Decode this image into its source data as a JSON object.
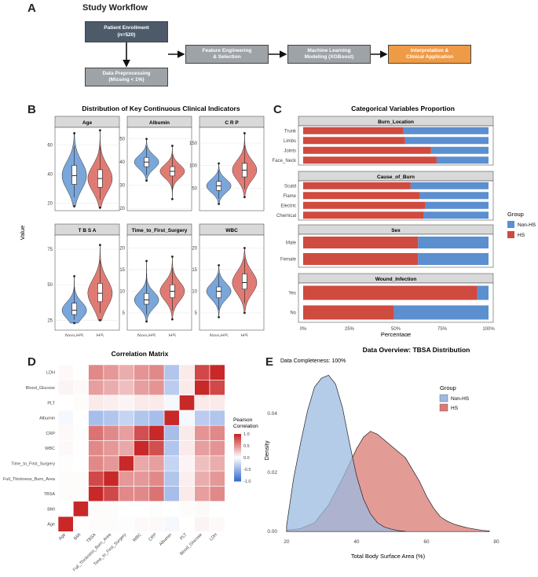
{
  "panels": {
    "A": "A",
    "B": "B",
    "C": "C",
    "D": "D",
    "E": "E"
  },
  "workflow": {
    "title": "Study Workflow",
    "enroll_1": "Patient Enrollment",
    "enroll_2": "(n=520)",
    "prep_1": "Data Preprocessing",
    "prep_2": "(Missing < 1%)",
    "feat_1": "Feature Engineering",
    "feat_2": "& Selection",
    "ml_1": "Machine Learning",
    "ml_2": "Modeling (XGBoost)",
    "interp_1": "Interpretation &",
    "interp_2": "Clinical Application",
    "colors": {
      "dark": "#4d5a6a",
      "grey": "#9ea3a8",
      "orange": "#ef9a45"
    }
  },
  "chart_data": [
    {
      "id": "B",
      "type": "violin",
      "title": "Distribution of Key Continuous Clinical Indicators",
      "ylabel": "Value",
      "groups": [
        "Non-HS",
        "HS"
      ],
      "colors": {
        "Non-HS": "#7aa6da",
        "HS": "#e07b74"
      },
      "facets": [
        {
          "label": "Age",
          "ticks": [
            20,
            40,
            60
          ],
          "ylim": [
            15,
            72
          ],
          "series": [
            {
              "group": "Non-HS",
              "median": 39,
              "q1": 33,
              "q3": 46,
              "min": 18,
              "max": 68
            },
            {
              "group": "HS",
              "median": 37,
              "q1": 31,
              "q3": 43,
              "min": 17,
              "max": 70
            }
          ]
        },
        {
          "label": "Albumin",
          "ticks": [
            20,
            30,
            40,
            50
          ],
          "ylim": [
            19,
            55
          ],
          "series": [
            {
              "group": "Non-HS",
              "median": 40,
              "q1": 38,
              "q3": 42,
              "min": 32,
              "max": 50
            },
            {
              "group": "HS",
              "median": 36,
              "q1": 34,
              "q3": 38,
              "min": 24,
              "max": 47
            }
          ]
        },
        {
          "label": "C R P",
          "ticks": [
            50,
            100,
            150
          ],
          "ylim": [
            0,
            185
          ],
          "series": [
            {
              "group": "Non-HS",
              "median": 55,
              "q1": 45,
              "q3": 65,
              "min": 15,
              "max": 105
            },
            {
              "group": "HS",
              "median": 90,
              "q1": 75,
              "q3": 105,
              "min": 30,
              "max": 172
            }
          ]
        },
        {
          "label": "T B S A",
          "ticks": [
            25,
            50,
            75
          ],
          "ylim": [
            18,
            85
          ],
          "series": [
            {
              "group": "Non-HS",
              "median": 32,
              "q1": 29,
              "q3": 37,
              "min": 23,
              "max": 56
            },
            {
              "group": "HS",
              "median": 44,
              "q1": 38,
              "q3": 51,
              "min": 25,
              "max": 78
            }
          ]
        },
        {
          "label": "Time_to_First_Surgery",
          "ticks": [
            5,
            10,
            15,
            20
          ],
          "ylim": [
            1,
            23
          ],
          "series": [
            {
              "group": "Non-HS",
              "median": 8,
              "q1": 7,
              "q3": 9.5,
              "min": 3,
              "max": 17
            },
            {
              "group": "HS",
              "median": 10,
              "q1": 8.5,
              "q3": 11.5,
              "min": 3.5,
              "max": 18
            }
          ]
        },
        {
          "label": "WBC",
          "ticks": [
            5,
            10,
            15,
            20
          ],
          "ylim": [
            1,
            23
          ],
          "series": [
            {
              "group": "Non-HS",
              "median": 10,
              "q1": 8.5,
              "q3": 11,
              "min": 4,
              "max": 16
            },
            {
              "group": "HS",
              "median": 12,
              "q1": 10.5,
              "q3": 14,
              "min": 5,
              "max": 20
            }
          ]
        }
      ],
      "x_ticks": [
        "Non-HS",
        "HS"
      ]
    },
    {
      "id": "C",
      "type": "bar",
      "orientation": "horizontal-stacked-percent",
      "title": "Categorical Variables Proportion",
      "xlabel": "Percentage",
      "x_ticks": [
        "0%",
        "25%",
        "50%",
        "75%",
        "100%"
      ],
      "legend_title": "Group",
      "legend": [
        {
          "label": "Non-HS",
          "color": "#5b8fd0"
        },
        {
          "label": "HS",
          "color": "#cf4a3f"
        }
      ],
      "facets": [
        {
          "label": "Burn_Location",
          "categories": [
            "Trunk",
            "Limbs",
            "Joints",
            "Face_Neck"
          ],
          "HS": [
            54,
            55,
            69,
            72
          ]
        },
        {
          "label": "Cause_of_Burn",
          "categories": [
            "Scald",
            "Flame",
            "Electric",
            "Chemical"
          ],
          "HS": [
            58,
            63,
            66,
            65
          ]
        },
        {
          "label": "Sex",
          "categories": [
            "Male",
            "Female"
          ],
          "HS": [
            62,
            62
          ]
        },
        {
          "label": "Wound_Infection",
          "categories": [
            "Yes",
            "No"
          ],
          "HS": [
            94,
            49
          ]
        }
      ]
    },
    {
      "id": "D",
      "type": "heatmap",
      "title": "Correlation Matrix",
      "legend_title_1": "Pearson",
      "legend_title_2": "Correlation",
      "legend_ticks": [
        "1.0",
        "0.5",
        "0.0",
        "-0.5",
        "-1.0"
      ],
      "variables": [
        "Age",
        "BMI",
        "TBSA",
        "Full_Thickness_Burn_Area",
        "Time_to_First_Surgery",
        "WBC",
        "CRP",
        "Albumin",
        "PLT",
        "Blood_Glucose",
        "LDH"
      ],
      "matrix": [
        [
          1.0,
          0.0,
          0.02,
          0.02,
          0.01,
          0.03,
          0.03,
          -0.05,
          0.0,
          0.05,
          0.03
        ],
        [
          0.0,
          1.0,
          0.02,
          0.02,
          0.0,
          0.0,
          0.01,
          0.0,
          0.02,
          0.03,
          0.0
        ],
        [
          0.02,
          0.02,
          1.0,
          0.85,
          0.55,
          0.55,
          0.65,
          -0.45,
          0.1,
          0.45,
          0.55
        ],
        [
          0.02,
          0.02,
          0.85,
          1.0,
          0.48,
          0.48,
          0.55,
          -0.4,
          0.08,
          0.38,
          0.48
        ],
        [
          0.01,
          0.0,
          0.55,
          0.48,
          1.0,
          0.4,
          0.45,
          -0.3,
          0.05,
          0.3,
          0.38
        ],
        [
          0.03,
          0.0,
          0.55,
          0.48,
          0.4,
          1.0,
          0.82,
          -0.4,
          0.1,
          0.45,
          0.5
        ],
        [
          0.03,
          0.01,
          0.65,
          0.55,
          0.45,
          0.82,
          1.0,
          -0.45,
          0.1,
          0.5,
          0.55
        ],
        [
          -0.05,
          0.0,
          -0.45,
          -0.4,
          -0.3,
          -0.4,
          -0.45,
          1.0,
          -0.05,
          -0.35,
          -0.4
        ],
        [
          0.0,
          0.02,
          0.1,
          0.08,
          0.05,
          0.1,
          0.1,
          -0.05,
          1.0,
          0.1,
          0.1
        ],
        [
          0.05,
          0.03,
          0.45,
          0.38,
          0.3,
          0.45,
          0.5,
          -0.35,
          0.1,
          1.0,
          0.85
        ],
        [
          0.03,
          0.0,
          0.55,
          0.48,
          0.38,
          0.5,
          0.55,
          -0.4,
          0.1,
          0.85,
          1.0
        ]
      ]
    },
    {
      "id": "E",
      "type": "area",
      "title": "Data Overview: TBSA Distribution",
      "subtitle": "Data Completeness: 100%",
      "xlabel": "Total Body Surface Area (%)",
      "ylabel": "Density",
      "xlim": [
        18,
        80
      ],
      "ylim": [
        -0.001,
        0.056
      ],
      "x_ticks": [
        20,
        40,
        60,
        80
      ],
      "y_ticks": [
        "0.00",
        "0.02",
        "0.04"
      ],
      "y_tick_values": [
        0,
        0.02,
        0.04
      ],
      "legend_title": "Group",
      "series": [
        {
          "name": "Non-HS",
          "color": "#9bbbe0",
          "x": [
            20,
            22,
            24,
            26,
            28,
            30,
            32,
            34,
            36,
            38,
            40,
            42,
            44,
            46,
            48,
            50,
            52,
            54
          ],
          "y": [
            0.002,
            0.018,
            0.03,
            0.041,
            0.049,
            0.052,
            0.053,
            0.05,
            0.042,
            0.03,
            0.019,
            0.011,
            0.006,
            0.003,
            0.0015,
            0.0008,
            0.0003,
            0.0001
          ]
        },
        {
          "name": "HS",
          "color": "#d97a73",
          "x": [
            20,
            24,
            28,
            32,
            36,
            40,
            42,
            44,
            46,
            48,
            50,
            52,
            54,
            56,
            58,
            60,
            62,
            64,
            66,
            68,
            70,
            72,
            74,
            76,
            78
          ],
          "y": [
            0.0005,
            0.001,
            0.003,
            0.009,
            0.018,
            0.028,
            0.032,
            0.034,
            0.033,
            0.031,
            0.029,
            0.027,
            0.025,
            0.021,
            0.017,
            0.012,
            0.008,
            0.005,
            0.0035,
            0.0025,
            0.0018,
            0.0012,
            0.0008,
            0.0004,
            0.0002
          ]
        }
      ]
    }
  ]
}
